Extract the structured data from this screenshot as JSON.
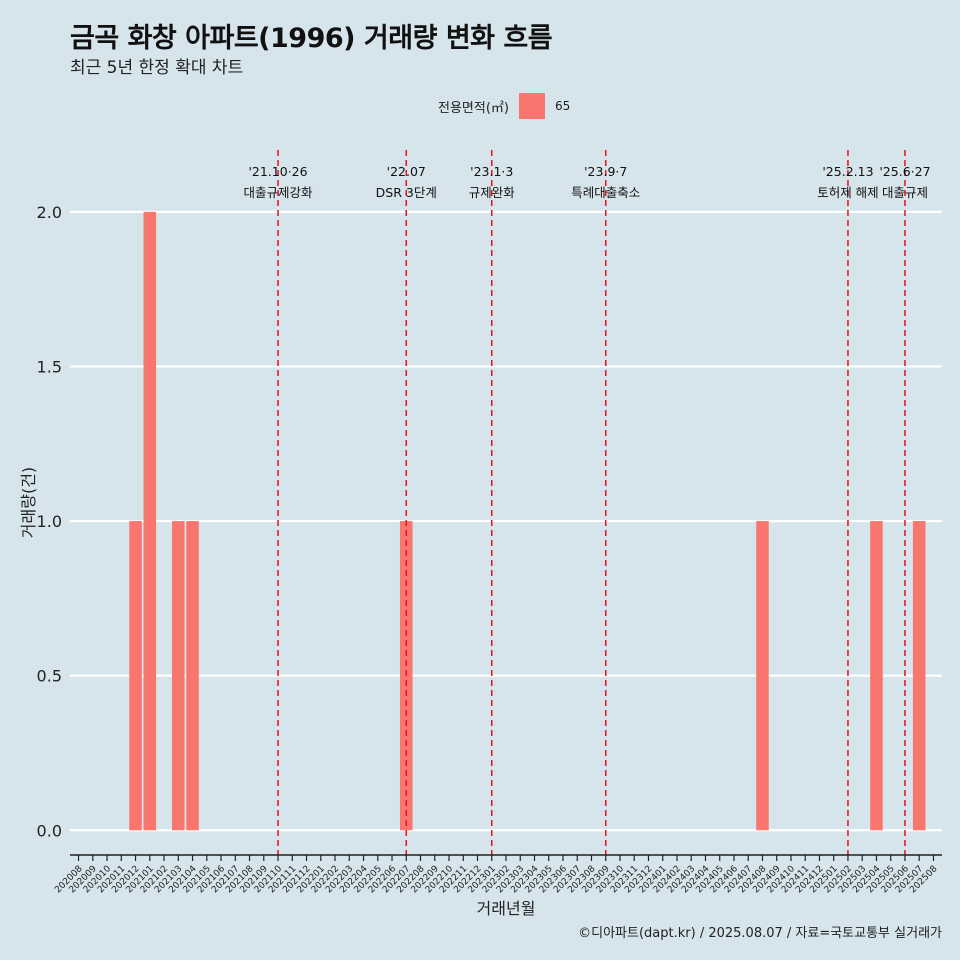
{
  "header": {
    "title": "금곡 화창 아파트(1996) 거래량 변화 흐름",
    "subtitle": "최근 5년 한정 확대 차트"
  },
  "legend": {
    "title": "전용면적(㎡)",
    "label": "65",
    "color": "#f8766d"
  },
  "caption": "©디아파트(dapt.kr) / 2025.08.07 / 자료=국토교통부 실거래가",
  "colors": {
    "background": "#d6e4ec",
    "bar": "#f8766d",
    "event_line": "#e8111b",
    "grid": "#ffffff"
  },
  "chart_data": {
    "type": "bar",
    "xlabel": "거래년월",
    "ylabel": "거래량(건)",
    "ylim": [
      -0.08,
      2.2
    ],
    "yticks": [
      0.0,
      0.5,
      1.0,
      1.5,
      2.0
    ],
    "ytick_labels": [
      "0.0",
      "0.5",
      "1.0",
      "1.5",
      "2.0"
    ],
    "categories": [
      "202008",
      "202009",
      "202010",
      "202011",
      "202012",
      "202101",
      "202102",
      "202103",
      "202104",
      "202105",
      "202106",
      "202107",
      "202108",
      "202109",
      "202110",
      "202111",
      "202112",
      "202201",
      "202202",
      "202203",
      "202204",
      "202205",
      "202206",
      "202207",
      "202208",
      "202209",
      "202210",
      "202211",
      "202212",
      "202301",
      "202302",
      "202303",
      "202304",
      "202305",
      "202306",
      "202307",
      "202308",
      "202309",
      "202310",
      "202311",
      "202312",
      "202401",
      "202402",
      "202403",
      "202404",
      "202405",
      "202406",
      "202407",
      "202408",
      "202409",
      "202410",
      "202411",
      "202412",
      "202501",
      "202502",
      "202503",
      "202504",
      "202505",
      "202506",
      "202507",
      "202508"
    ],
    "series": [
      {
        "name": "65",
        "bars": [
          {
            "x": "202012",
            "y": 1
          },
          {
            "x": "202101",
            "y": 2
          },
          {
            "x": "202103",
            "y": 1
          },
          {
            "x": "202104",
            "y": 1
          },
          {
            "x": "202207",
            "y": 1
          },
          {
            "x": "202408",
            "y": 1
          },
          {
            "x": "202504",
            "y": 1
          },
          {
            "x": "202507",
            "y": 1
          }
        ]
      }
    ],
    "events": [
      {
        "x": "202110",
        "date": "'21.10·26",
        "label": "대출규제강화"
      },
      {
        "x": "202207",
        "date": "'22.07",
        "label": "DSR 3단계"
      },
      {
        "x": "202301",
        "date": "'23.1·3",
        "label": "규제완화"
      },
      {
        "x": "202309",
        "date": "'23.9·7",
        "label": "특례대출축소"
      },
      {
        "x": "202502",
        "date": "'25.2.13",
        "label": "토허제 해제"
      },
      {
        "x": "202506",
        "date": "'25.6·27",
        "label": "대출규제"
      }
    ]
  }
}
